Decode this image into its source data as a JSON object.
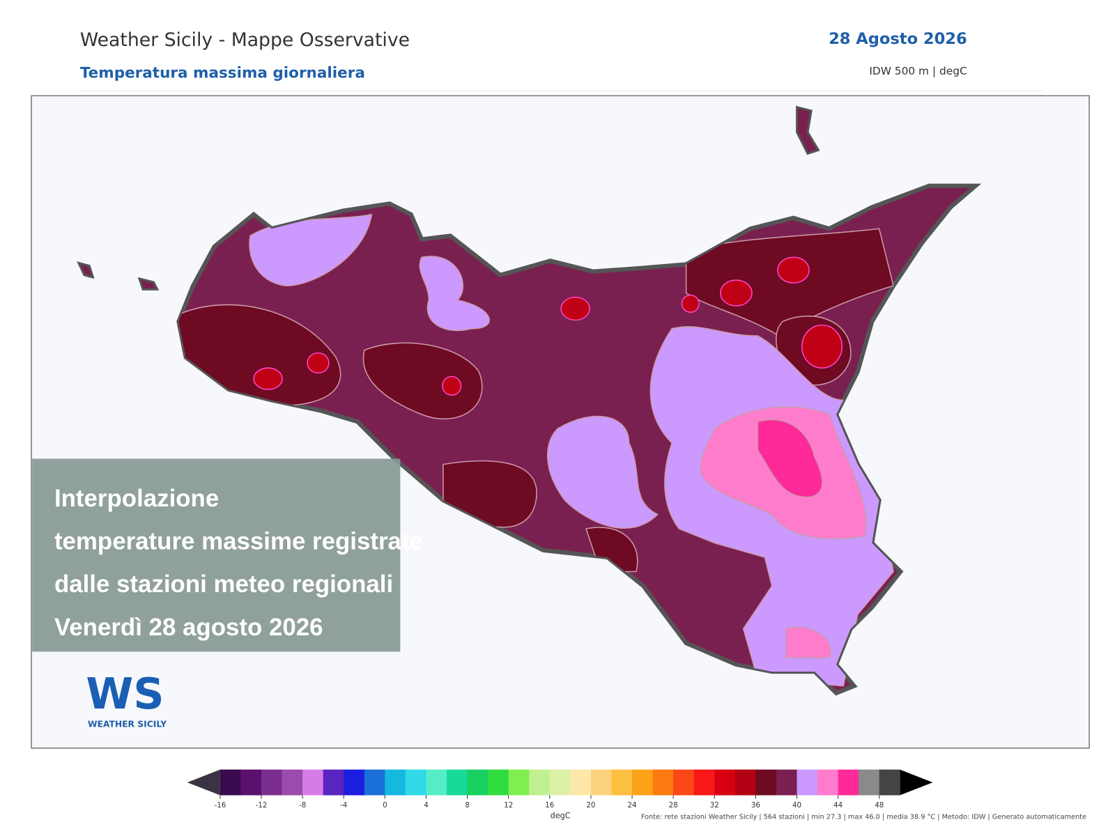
{
  "header": {
    "title": "Weather Sicily - Mappe Osservative",
    "subtitle": "Temperatura massima giornaliera",
    "date": "28 Agosto 2026",
    "method": "IDW 500 m | degC"
  },
  "overlay": {
    "lines": [
      "Interpolazione",
      "temperature massime registrate",
      "dalle stazioni meteo regionali",
      "Venerdì 28 agosto 2026"
    ]
  },
  "logo": {
    "initials": "WS",
    "name": "WEATHER SICILY"
  },
  "colorbar": {
    "xlim": [
      -16,
      50
    ],
    "ticks": [
      -16,
      -12,
      -8,
      -4,
      0,
      4,
      8,
      12,
      16,
      20,
      24,
      28,
      32,
      36,
      40,
      44,
      48
    ],
    "colors": [
      "#3b0b4f",
      "#5b1070",
      "#7a2e8e",
      "#9a4bab",
      "#d77be6",
      "#5a24c0",
      "#1c1de0",
      "#1a70d8",
      "#16b8e0",
      "#30d8e8",
      "#56ecc8",
      "#18d89a",
      "#18d060",
      "#30dc40",
      "#80ee50",
      "#c0f090",
      "#dcf0a8",
      "#fde8a8",
      "#fcd27e",
      "#fcc040",
      "#fca218",
      "#fc7a10",
      "#fc4818",
      "#f81818",
      "#d80010",
      "#b00012",
      "#6e0a22",
      "#7a2050",
      "#cc99ff",
      "#ff7ccc",
      "#ff2a9a",
      "#8a8a8a",
      "#444444"
    ],
    "label": "degC",
    "source": "Fonte: rete stazioni Weather Sicily | 564 stazioni | min 27.3 | max 46.0 | media 38.9 °C | Metodo: IDW | Generato automaticamente"
  }
}
